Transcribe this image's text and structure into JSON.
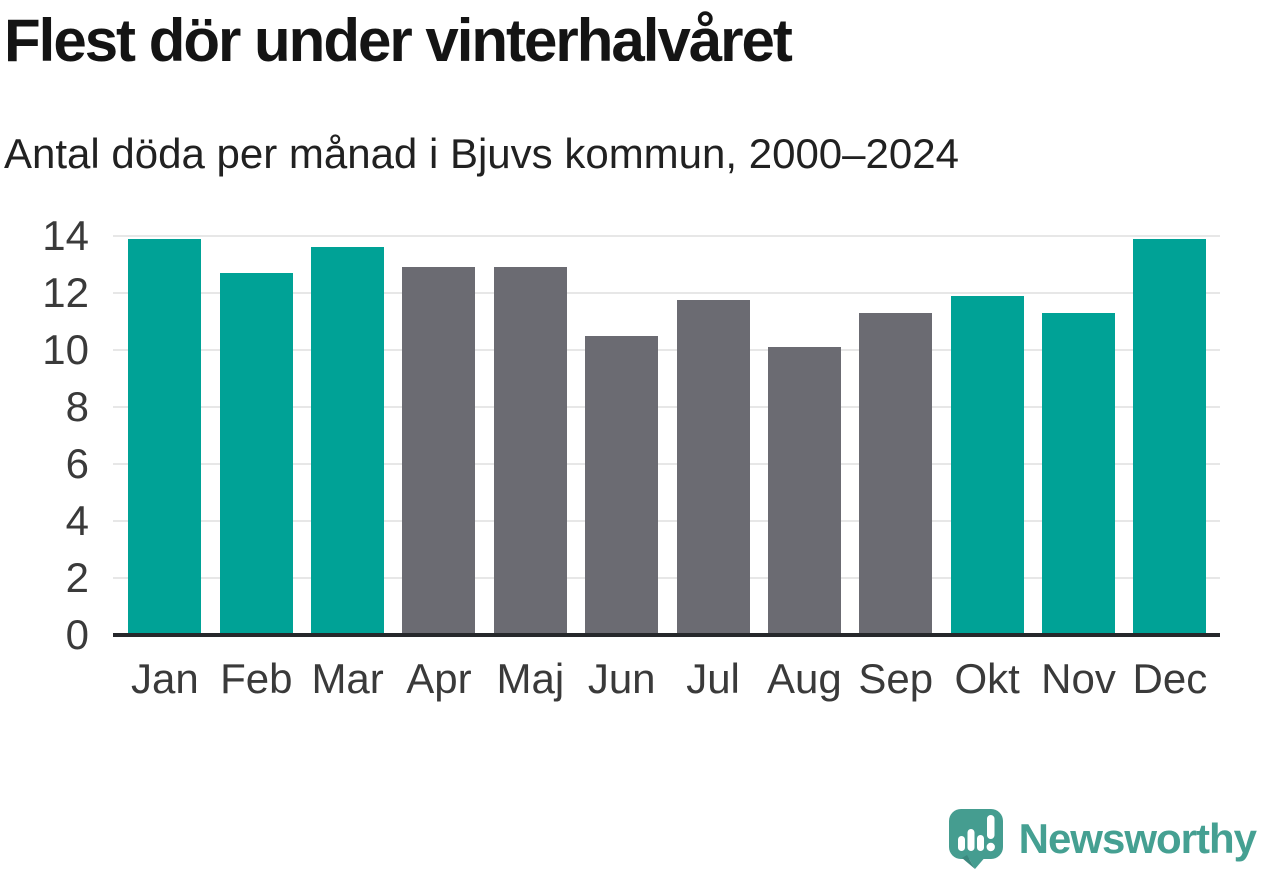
{
  "header": {
    "title": "Flest dör under vinterhalvåret",
    "subtitle": "Antal döda per månad i Bjuvs kommun, 2000–2024"
  },
  "chart_data": {
    "type": "bar",
    "title": "Flest dör under vinterhalvåret",
    "subtitle": "Antal döda per månad i Bjuvs kommun, 2000–2024",
    "categories": [
      "Jan",
      "Feb",
      "Mar",
      "Apr",
      "Maj",
      "Jun",
      "Jul",
      "Aug",
      "Sep",
      "Okt",
      "Nov",
      "Dec"
    ],
    "values": [
      13.9,
      12.7,
      13.6,
      12.9,
      12.9,
      10.5,
      11.75,
      10.1,
      11.3,
      11.9,
      11.3,
      13.9
    ],
    "bar_color_keys": [
      "teal",
      "teal",
      "teal",
      "gray",
      "gray",
      "gray",
      "gray",
      "gray",
      "gray",
      "teal",
      "teal",
      "teal"
    ],
    "xlabel": "",
    "ylabel": "",
    "ylim": [
      0,
      14
    ],
    "yticks": [
      0,
      2,
      4,
      6,
      8,
      10,
      12,
      14
    ],
    "grid": "horizontal",
    "legend": "none",
    "colors": {
      "teal": "#00a296",
      "gray": "#6b6b72",
      "axis": "#26282b",
      "gridline": "#e7e7e7",
      "tick_label": "#3a3a3a"
    }
  },
  "footer": {
    "brand": "Newsworthy",
    "brand_color": "#45a092",
    "logo_color": "#459d90",
    "logo_shade": "#3b887e"
  }
}
